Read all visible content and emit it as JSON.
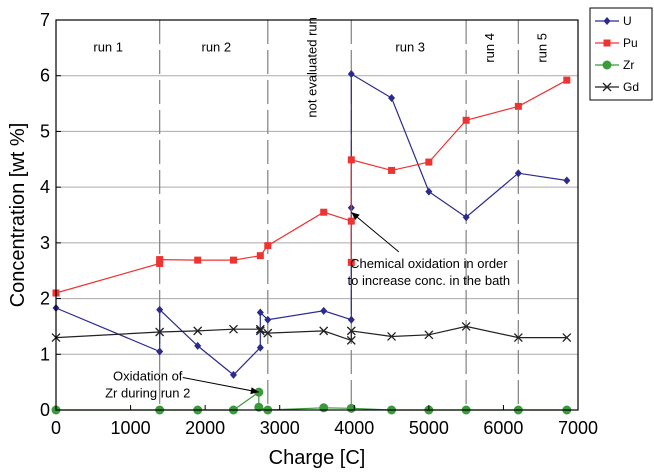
{
  "chart_data": {
    "type": "line",
    "xlabel": "Charge [C]",
    "ylabel": "Concentration [wt %]",
    "xlim": [
      0,
      7000
    ],
    "ylim": [
      0,
      7
    ],
    "xticks": [
      0,
      1000,
      2000,
      3000,
      4000,
      5000,
      6000,
      7000
    ],
    "yticks": [
      0,
      1,
      2,
      3,
      4,
      5,
      6,
      7
    ],
    "grid": "horizontal",
    "legend_position": "top-right outside",
    "run_dividers": [
      1390,
      2840,
      3960,
      5500,
      6200
    ],
    "run_labels": [
      {
        "text": "run 1",
        "x": 700,
        "y": 6.5,
        "vertical": false
      },
      {
        "text": "run 2",
        "x": 2150,
        "y": 6.5,
        "vertical": false
      },
      {
        "text": "not evaluated run",
        "x": 3450,
        "y": 6.15,
        "vertical": true
      },
      {
        "text": "run 3",
        "x": 4750,
        "y": 6.5,
        "vertical": false
      },
      {
        "text": "run 4",
        "x": 5830,
        "y": 6.5,
        "vertical": true
      },
      {
        "text": "run 5",
        "x": 6530,
        "y": 6.5,
        "vertical": true
      }
    ],
    "annotations": [
      {
        "lines": [
          "Chemical oxidation in order",
          "to increase conc. in the bath"
        ],
        "x": 5000,
        "y": 2.55,
        "arrow_to": [
          3960,
          3.55
        ]
      },
      {
        "lines": [
          "Oxidation of",
          "Zr during run 2"
        ],
        "x": 1230,
        "y": 0.53,
        "arrow_to": [
          2720,
          0.32
        ]
      }
    ],
    "series": [
      {
        "name": "U",
        "color": "#2b2b8f",
        "marker": "diamond",
        "points": [
          [
            0,
            1.83
          ],
          [
            1390,
            1.05
          ],
          [
            1390,
            1.8
          ],
          [
            1900,
            1.15
          ],
          [
            2380,
            0.63
          ],
          [
            2740,
            1.12
          ],
          [
            2740,
            1.75
          ],
          [
            2840,
            1.62
          ],
          [
            3590,
            1.78
          ],
          [
            3960,
            1.62
          ],
          [
            3960,
            3.63
          ],
          [
            3960,
            6.03
          ],
          [
            4500,
            5.6
          ],
          [
            5000,
            3.92
          ],
          [
            5500,
            3.46
          ],
          [
            6200,
            4.25
          ],
          [
            6850,
            4.12
          ]
        ]
      },
      {
        "name": "Pu",
        "color": "#ee3333",
        "marker": "square",
        "points": [
          [
            0,
            2.1
          ],
          [
            1390,
            2.63
          ],
          [
            1390,
            2.7
          ],
          [
            1900,
            2.69
          ],
          [
            2380,
            2.69
          ],
          [
            2740,
            2.77
          ],
          [
            2840,
            2.95
          ],
          [
            3590,
            3.55
          ],
          [
            3960,
            3.39
          ],
          [
            3960,
            2.65
          ],
          [
            3960,
            4.49
          ],
          [
            4500,
            4.3
          ],
          [
            5000,
            4.45
          ],
          [
            5500,
            5.2
          ],
          [
            6200,
            5.45
          ],
          [
            6850,
            5.92
          ]
        ]
      },
      {
        "name": "Zr",
        "color": "#3b9a3b",
        "marker": "circle",
        "points": [
          [
            0,
            0
          ],
          [
            1390,
            0
          ],
          [
            1900,
            0
          ],
          [
            2380,
            0
          ],
          [
            2720,
            0.32
          ],
          [
            2720,
            0.05
          ],
          [
            2840,
            0
          ],
          [
            3590,
            0.04
          ],
          [
            3960,
            0.03
          ],
          [
            4500,
            0
          ],
          [
            5000,
            0
          ],
          [
            5500,
            0
          ],
          [
            6200,
            0
          ],
          [
            6850,
            0
          ]
        ]
      },
      {
        "name": "Gd",
        "color": "#222222",
        "marker": "x",
        "points": [
          [
            0,
            1.3
          ],
          [
            1390,
            1.4
          ],
          [
            1900,
            1.42
          ],
          [
            2380,
            1.45
          ],
          [
            2740,
            1.45
          ],
          [
            2740,
            1.42
          ],
          [
            2840,
            1.38
          ],
          [
            3590,
            1.42
          ],
          [
            3960,
            1.25
          ],
          [
            3960,
            1.42
          ],
          [
            4500,
            1.32
          ],
          [
            5000,
            1.35
          ],
          [
            5500,
            1.5
          ],
          [
            6200,
            1.3
          ],
          [
            6850,
            1.3
          ]
        ]
      }
    ]
  }
}
